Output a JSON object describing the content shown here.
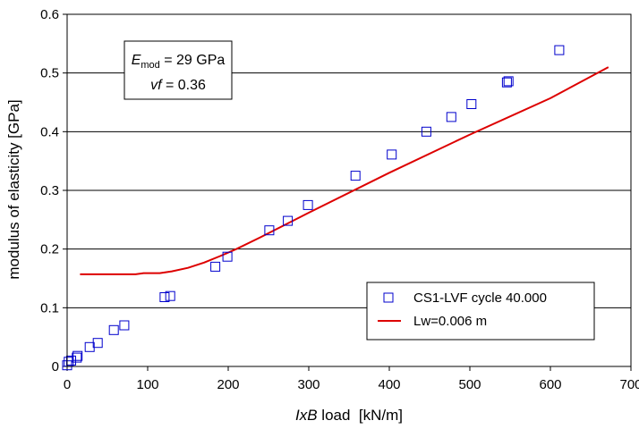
{
  "chart_data": {
    "type": "scatter",
    "xlabel_italic": "IxB",
    "xlabel_rest": " load  [kN/m]",
    "ylabel": "modulus of elasticity [GPa]",
    "xlim": [
      0,
      700
    ],
    "ylim": [
      0,
      0.6
    ],
    "x_ticks": [
      0,
      100,
      200,
      300,
      400,
      500,
      600,
      700
    ],
    "y_ticks": [
      0,
      0.1,
      0.2,
      0.3,
      0.4,
      0.5,
      0.6
    ],
    "y_tick_labels": [
      "0",
      "0.1",
      "0.2",
      "0.3",
      "0.4",
      "0.5",
      "0.6"
    ],
    "grid": true,
    "legend_position": "bottom-right",
    "annotation": {
      "line1_symbol": "E",
      "line1_sub": "mod",
      "line1_value": " = 29 GPa",
      "line2_symbol": "vf",
      "line2_value": " = 0.36"
    },
    "series": [
      {
        "name": "CS1-LVF cycle 40.000",
        "kind": "scatter",
        "color": "#0000cc",
        "points": [
          [
            0,
            0.002
          ],
          [
            2,
            0.008
          ],
          [
            5,
            0.01
          ],
          [
            12,
            0.015
          ],
          [
            13,
            0.018
          ],
          [
            28,
            0.033
          ],
          [
            38,
            0.04
          ],
          [
            58,
            0.062
          ],
          [
            71,
            0.07
          ],
          [
            121,
            0.118
          ],
          [
            128,
            0.12
          ],
          [
            184,
            0.17
          ],
          [
            199,
            0.187
          ],
          [
            251,
            0.232
          ],
          [
            274,
            0.248
          ],
          [
            299,
            0.275
          ],
          [
            358,
            0.325
          ],
          [
            403,
            0.361
          ],
          [
            446,
            0.4
          ],
          [
            477,
            0.425
          ],
          [
            502,
            0.447
          ],
          [
            546,
            0.484
          ],
          [
            548,
            0.486
          ],
          [
            611,
            0.539
          ]
        ]
      },
      {
        "name": "Lw=0.006 m",
        "kind": "line",
        "color": "#dd0000",
        "points": [
          [
            16,
            0.157
          ],
          [
            50,
            0.157
          ],
          [
            85,
            0.157
          ],
          [
            95,
            0.159
          ],
          [
            115,
            0.159
          ],
          [
            130,
            0.162
          ],
          [
            150,
            0.168
          ],
          [
            170,
            0.177
          ],
          [
            190,
            0.188
          ],
          [
            210,
            0.2
          ],
          [
            240,
            0.22
          ],
          [
            300,
            0.262
          ],
          [
            400,
            0.33
          ],
          [
            500,
            0.395
          ],
          [
            600,
            0.457
          ],
          [
            672,
            0.51
          ]
        ]
      }
    ]
  }
}
